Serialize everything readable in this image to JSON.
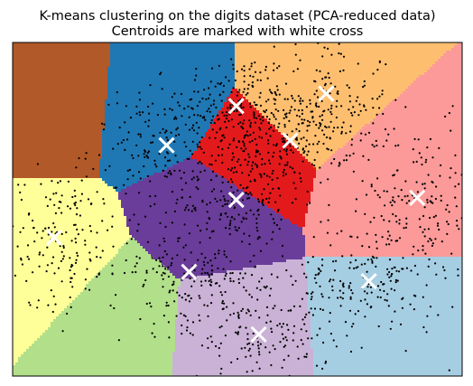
{
  "chart_data": {
    "type": "scatter",
    "title": "K-means clustering on the digits dataset (PCA-reduced data)",
    "subtitle": "Centroids are marked with white cross",
    "xlabel": "",
    "ylabel": "",
    "grid": false,
    "ticks": false,
    "legend": "none",
    "xlim": [
      -10,
      10
    ],
    "ylim": [
      -8,
      8
    ],
    "point_color": "#000000",
    "centroid_color": "#ffffff",
    "centroid_marker": "x",
    "regions": [
      {
        "color": "#b15928",
        "cx": -8.5,
        "cy": 5.5
      },
      {
        "color": "#1f78b4",
        "cx": -3.2,
        "cy": 5.0
      },
      {
        "color": "#fdbf6f",
        "cx": 3.0,
        "cy": 5.2
      },
      {
        "color": "#e31a1c",
        "cx": 0.5,
        "cy": 2.5
      },
      {
        "color": "#fb9a99",
        "cx": 6.5,
        "cy": 1.0
      },
      {
        "color": "#6a3d9a",
        "cx": -1.0,
        "cy": 0.0
      },
      {
        "color": "#ffff99",
        "cx": -8.5,
        "cy": -2.5
      },
      {
        "color": "#b2df8a",
        "cx": -5.5,
        "cy": -5.5
      },
      {
        "color": "#cab2d6",
        "cx": 0.0,
        "cy": -6.0
      },
      {
        "color": "#a6cee3",
        "cx": 6.5,
        "cy": -5.5
      }
    ],
    "centroids": [
      {
        "x": -0.05,
        "y": 4.95
      },
      {
        "x": 3.95,
        "y": 5.55
      },
      {
        "x": -3.15,
        "y": 3.07
      },
      {
        "x": 2.35,
        "y": 3.3
      },
      {
        "x": 8.0,
        "y": 0.55
      },
      {
        "x": -0.05,
        "y": 0.45
      },
      {
        "x": -8.15,
        "y": -1.35
      },
      {
        "x": -2.15,
        "y": -3.0
      },
      {
        "x": 5.85,
        "y": -3.45
      },
      {
        "x": 0.95,
        "y": -6.0
      }
    ],
    "clusters": [
      {
        "cx": -0.1,
        "cy": 5.0,
        "sx": 1.3,
        "sy": 1.3,
        "n": 170
      },
      {
        "cx": 3.9,
        "cy": 5.2,
        "sx": 1.5,
        "sy": 1.5,
        "n": 170
      },
      {
        "cx": -3.2,
        "cy": 3.0,
        "sx": 1.7,
        "sy": 1.4,
        "n": 180
      },
      {
        "cx": 2.3,
        "cy": 3.2,
        "sx": 1.3,
        "sy": 1.0,
        "n": 180
      },
      {
        "cx": 7.9,
        "cy": 0.3,
        "sx": 1.8,
        "sy": 1.9,
        "n": 180
      },
      {
        "cx": 0.0,
        "cy": 0.5,
        "sx": 1.4,
        "sy": 1.2,
        "n": 180
      },
      {
        "cx": -8.0,
        "cy": -1.3,
        "sx": 1.5,
        "sy": 1.6,
        "n": 180
      },
      {
        "cx": -2.3,
        "cy": -3.1,
        "sx": 1.7,
        "sy": 1.3,
        "n": 180
      },
      {
        "cx": 5.9,
        "cy": -3.4,
        "sx": 1.7,
        "sy": 1.5,
        "n": 180
      },
      {
        "cx": 1.0,
        "cy": -5.6,
        "sx": 1.6,
        "sy": 1.4,
        "n": 180
      }
    ]
  }
}
